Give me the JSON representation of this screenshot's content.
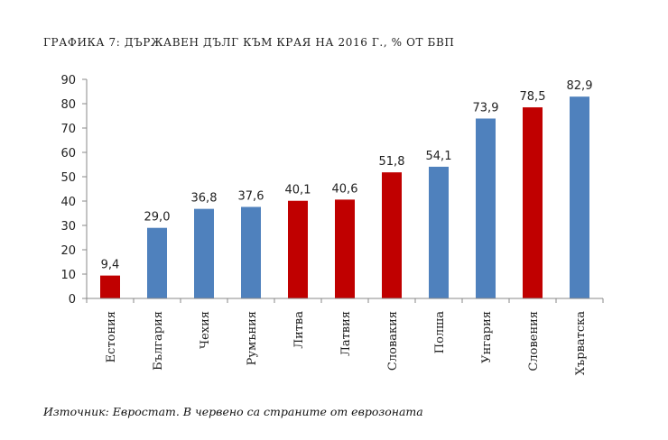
{
  "title": "ГРАФИКА 7: ДЪРЖАВЕН ДЪЛГ КЪМ КРАЯ НА 2016 Г., % ОТ БВП",
  "source": "Източник: Евростат. В червено са страните от еврозоната",
  "colors": {
    "eurozone": "#C00000",
    "other": "#4F81BD"
  },
  "chart_data": {
    "type": "bar",
    "categories": [
      "Естония",
      "България",
      "Чехия",
      "Румъния",
      "Литва",
      "Латвия",
      "Словакия",
      "Полша",
      "Унгария",
      "Словения",
      "Хърватска"
    ],
    "values": [
      9.4,
      29.0,
      36.8,
      37.6,
      40.1,
      40.6,
      51.8,
      54.1,
      73.9,
      78.5,
      82.9
    ],
    "value_labels": [
      "9,4",
      "29,0",
      "36,8",
      "37,6",
      "40,1",
      "40,6",
      "51,8",
      "54,1",
      "73,9",
      "78,5",
      "82,9"
    ],
    "eurozone": [
      true,
      false,
      false,
      false,
      true,
      true,
      true,
      false,
      false,
      true,
      false
    ],
    "y_ticks": [
      "0",
      "10",
      "20",
      "30",
      "40",
      "50",
      "60",
      "70",
      "80",
      "90"
    ],
    "ylim": [
      0,
      90
    ],
    "grid": false,
    "legend": "none"
  }
}
